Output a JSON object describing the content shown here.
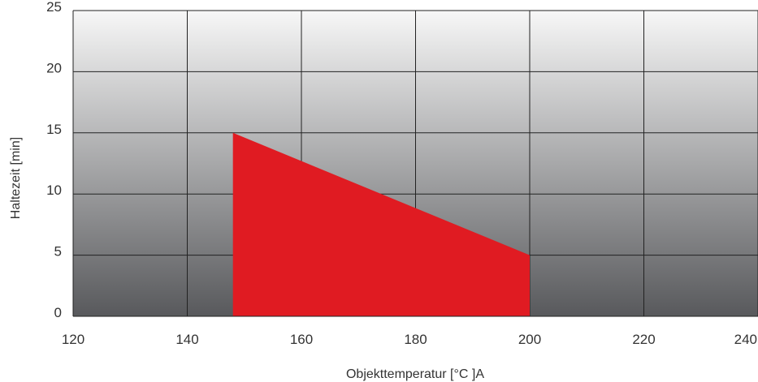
{
  "chart_data": {
    "type": "area",
    "xlabel": "Objekttemperatur [°C ]A",
    "ylabel": "Haltezeit [min]",
    "xlim": [
      120,
      240
    ],
    "ylim": [
      0,
      25
    ],
    "x_ticks": [
      "120",
      "140",
      "160",
      "180",
      "200",
      "220",
      "240"
    ],
    "y_ticks": [
      "0",
      "5",
      "10",
      "15",
      "20",
      "25"
    ],
    "grid": true,
    "series": [
      {
        "points": [
          [
            148,
            0
          ],
          [
            148,
            15
          ],
          [
            200,
            5
          ],
          [
            200,
            0
          ]
        ],
        "color": "#e01b22"
      }
    ],
    "background_gradient": [
      "#f7f7f7",
      "#58595c"
    ],
    "grid_color": "#222222"
  }
}
